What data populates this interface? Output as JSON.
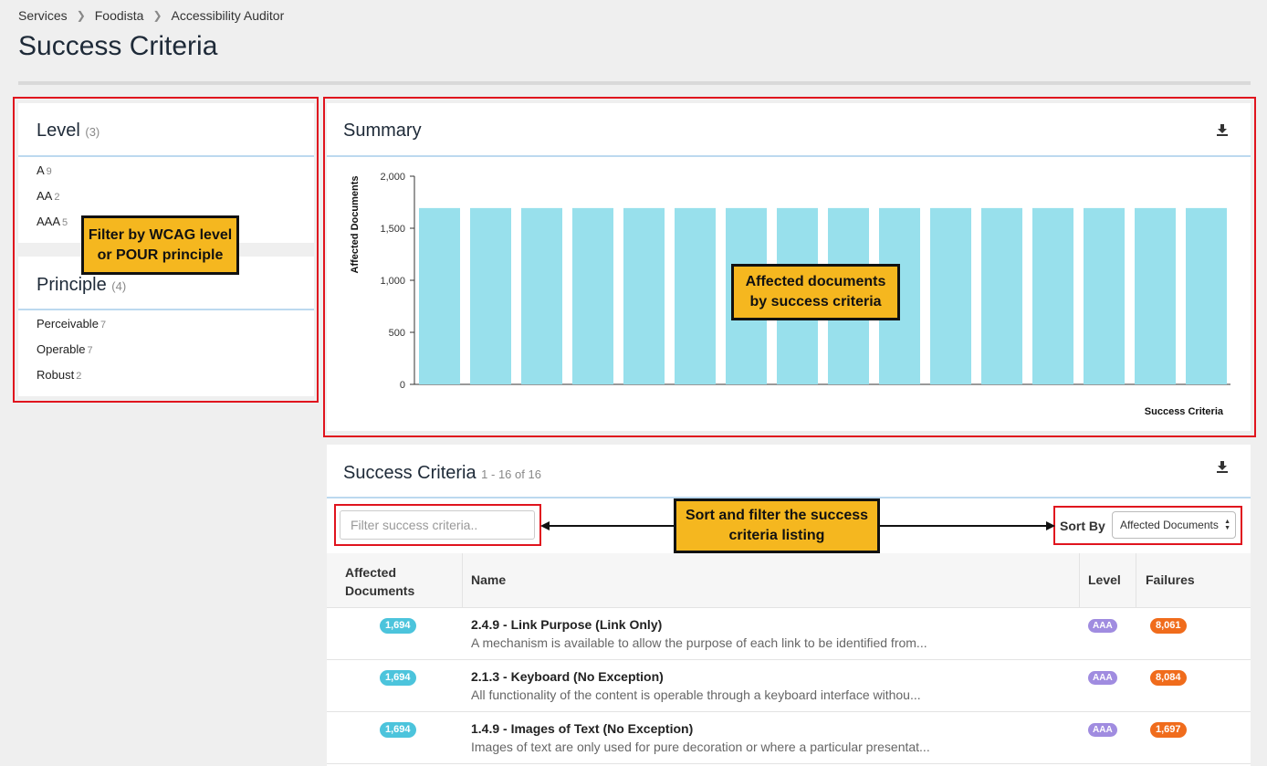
{
  "breadcrumb": [
    "Services",
    "Foodista",
    "Accessibility Auditor"
  ],
  "page_title": "Success Criteria",
  "facets": {
    "level": {
      "title": "Level",
      "count": "(3)",
      "items": [
        {
          "label": "A",
          "count": "9"
        },
        {
          "label": "AA",
          "count": "2"
        },
        {
          "label": "AAA",
          "count": "5"
        }
      ]
    },
    "principle": {
      "title": "Principle",
      "count": "(4)",
      "items": [
        {
          "label": "Perceivable",
          "count": "7"
        },
        {
          "label": "Operable",
          "count": "7"
        },
        {
          "label": "Robust",
          "count": "2"
        }
      ]
    }
  },
  "callouts": {
    "filter_facets": "Filter by WCAG level or POUR principle",
    "chart": "Affected documents by success criteria",
    "sort_filter": "Sort and filter the success criteria listing"
  },
  "summary": {
    "title": "Summary"
  },
  "chart_data": {
    "type": "bar",
    "title": "",
    "xlabel": "Success Criteria",
    "ylabel": "Affected Documents",
    "ylim": [
      0,
      2000
    ],
    "yticks": [
      "0",
      "500",
      "1,000",
      "1,500",
      "2,000"
    ],
    "ytick_values": [
      0,
      500,
      1000,
      1500,
      2000
    ],
    "values": [
      1694,
      1694,
      1694,
      1694,
      1694,
      1694,
      1694,
      1694,
      1694,
      1694,
      1694,
      1694,
      1694,
      1694,
      1694,
      1694
    ],
    "bar_color": "#98e0ec",
    "grid": false
  },
  "criteria": {
    "title": "Success Criteria",
    "range": "1 - 16 of 16",
    "filter_placeholder": "Filter success criteria..",
    "sort_label": "Sort By",
    "sort_value": "Affected Documents",
    "columns": {
      "affected": "Affected Documents",
      "name": "Name",
      "level": "Level",
      "failures": "Failures"
    },
    "rows": [
      {
        "affected": "1,694",
        "name": "2.4.9 - Link Purpose (Link Only)",
        "desc": "A mechanism is available to allow the purpose of each link to be identified from...",
        "level": "AAA",
        "failures": "8,061"
      },
      {
        "affected": "1,694",
        "name": "2.1.3 - Keyboard (No Exception)",
        "desc": "All functionality of the content is operable through a keyboard interface withou...",
        "level": "AAA",
        "failures": "8,084"
      },
      {
        "affected": "1,694",
        "name": "1.4.9 - Images of Text (No Exception)",
        "desc": "Images of text are only used for pure decoration or where a particular presentat...",
        "level": "AAA",
        "failures": "1,697"
      }
    ]
  },
  "colors": {
    "badge_affected": "#4cc4dc",
    "badge_level": "#a08ce0",
    "badge_failures": "#f06c1c",
    "annotation_border": "#e0141e",
    "callout": "#f5b71f"
  }
}
